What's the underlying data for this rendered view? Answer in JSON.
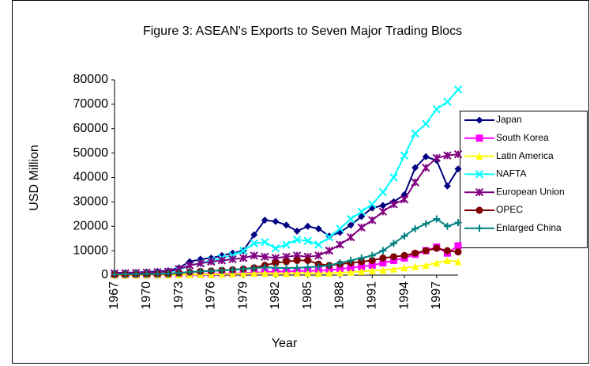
{
  "chart_data": {
    "type": "line",
    "title": "Figure 3: ASEAN's Exports to Seven Major Trading Blocs",
    "x_label": "Year",
    "y_label": "USD Million",
    "categories": [
      "1967",
      null,
      null,
      "1970",
      null,
      null,
      "1973",
      null,
      null,
      "1976",
      null,
      null,
      "1979",
      null,
      null,
      "1982",
      null,
      null,
      "1985",
      null,
      null,
      "1988",
      null,
      null,
      "1991",
      null,
      null,
      "1994",
      null,
      null,
      "1997",
      null,
      null
    ],
    "ylim": [
      0,
      80000
    ],
    "yticks": [
      0,
      10000,
      20000,
      30000,
      40000,
      50000,
      60000,
      70000,
      80000
    ],
    "grid": false,
    "legend": "right",
    "series": [
      {
        "name": "Japan",
        "color": "#000080",
        "marker": "diamond",
        "values": [
          900,
          1000,
          1100,
          1300,
          1500,
          1800,
          3000,
          5500,
          6500,
          7000,
          8000,
          9000,
          10000,
          16500,
          22500,
          22000,
          20500,
          18000,
          20000,
          19000,
          16000,
          17500,
          20500,
          24000,
          27500,
          28500,
          30000,
          33000,
          44000,
          48500,
          47000,
          36500,
          43500
        ]
      },
      {
        "name": "South Korea",
        "color": "#ff00ff",
        "marker": "square",
        "values": [
          0,
          0,
          50,
          100,
          100,
          150,
          200,
          300,
          400,
          500,
          600,
          700,
          800,
          1000,
          1200,
          1400,
          1500,
          1600,
          1800,
          1800,
          2000,
          2500,
          3000,
          3500,
          4000,
          5000,
          6000,
          7000,
          8500,
          10000,
          11500,
          9000,
          12000
        ]
      },
      {
        "name": "Latin America",
        "color": "#ffff00",
        "marker": "triangle",
        "values": [
          50,
          50,
          50,
          100,
          100,
          100,
          150,
          200,
          300,
          300,
          400,
          500,
          600,
          700,
          800,
          700,
          700,
          800,
          800,
          700,
          800,
          1000,
          1200,
          1500,
          1800,
          2000,
          2500,
          3000,
          3500,
          4000,
          5000,
          6000,
          5500
        ]
      },
      {
        "name": "NAFTA",
        "color": "#00ffff",
        "marker": "x",
        "values": [
          600,
          700,
          800,
          900,
          1100,
          1300,
          2000,
          4000,
          5000,
          6000,
          7000,
          8000,
          10000,
          13000,
          13500,
          11000,
          12500,
          14500,
          14000,
          12500,
          15500,
          19000,
          23000,
          26000,
          29000,
          34000,
          40000,
          49000,
          58000,
          62000,
          68000,
          71000,
          76000
        ]
      },
      {
        "name": "European Union",
        "color": "#800080",
        "marker": "star",
        "values": [
          700,
          800,
          900,
          1000,
          1200,
          1400,
          2500,
          4000,
          4800,
          5500,
          6000,
          6500,
          7000,
          8000,
          7500,
          7000,
          7500,
          8000,
          7500,
          8000,
          10000,
          12500,
          15500,
          19500,
          22500,
          26000,
          29000,
          31000,
          38000,
          44000,
          48000,
          49000,
          49500
        ]
      },
      {
        "name": "OPEC",
        "color": "#800000",
        "marker": "circle",
        "values": [
          200,
          250,
          300,
          350,
          400,
          500,
          800,
          1200,
          1500,
          1700,
          2000,
          2200,
          2500,
          3000,
          4000,
          5000,
          5500,
          6000,
          6000,
          4500,
          4000,
          4500,
          5000,
          5500,
          6000,
          7000,
          7500,
          8000,
          9000,
          10000,
          11000,
          10000,
          9500
        ]
      },
      {
        "name": "Enlarged China",
        "color": "#008080",
        "marker": "plus",
        "values": [
          300,
          350,
          400,
          450,
          500,
          600,
          900,
          1300,
          1500,
          1700,
          1900,
          2200,
          2500,
          2800,
          3200,
          3000,
          2900,
          3000,
          3200,
          3500,
          4000,
          5000,
          6000,
          7000,
          8000,
          10000,
          13000,
          16000,
          19000,
          21000,
          23000,
          20000,
          21500
        ]
      }
    ]
  }
}
